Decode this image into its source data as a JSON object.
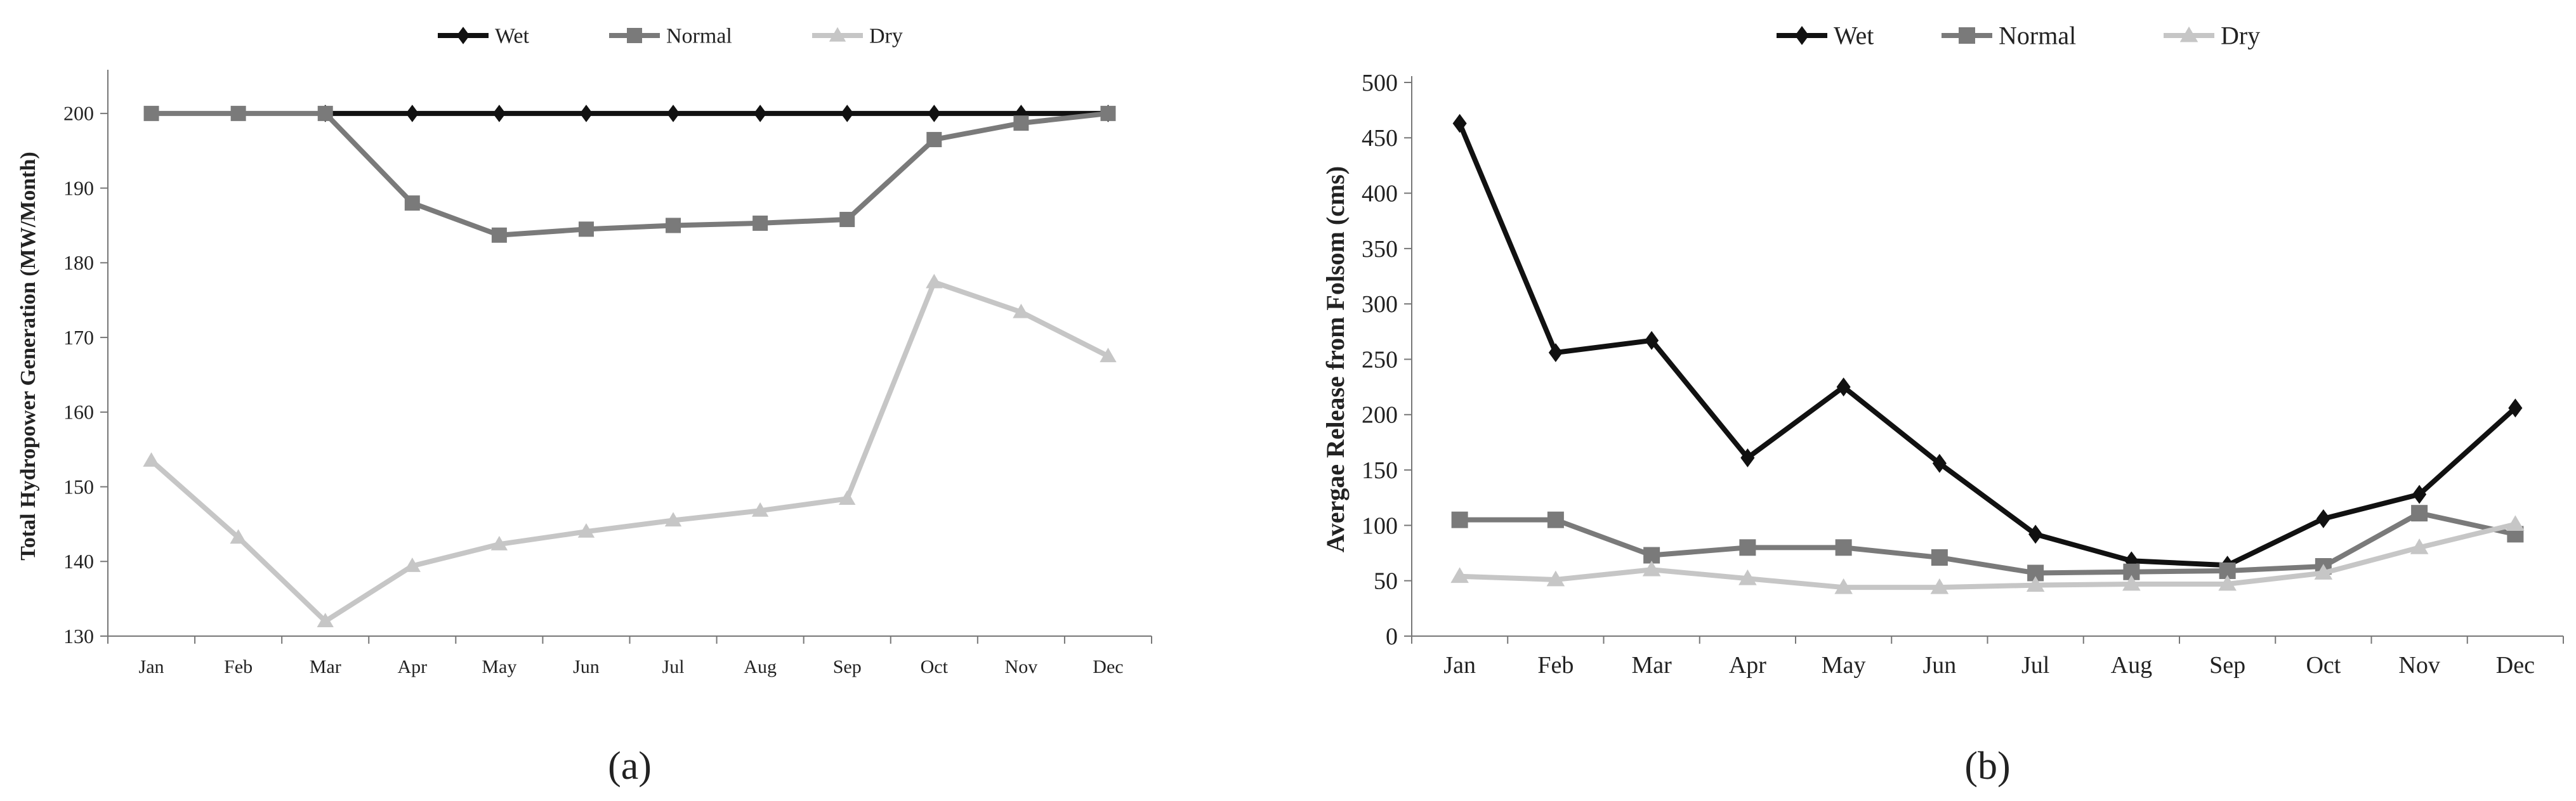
{
  "chart_data": [
    {
      "panel_label": "(a)",
      "type": "line",
      "title": "",
      "xlabel": "",
      "ylabel": "Total Hydropower Generation (MW/Month)",
      "categories": [
        "Jan",
        "Feb",
        "Mar",
        "Apr",
        "May",
        "Jun",
        "Jul",
        "Aug",
        "Sep",
        "Oct",
        "Nov",
        "Dec"
      ],
      "ylim": [
        130,
        205
      ],
      "yticks": [
        130,
        140,
        150,
        160,
        170,
        180,
        190,
        200
      ],
      "grid": false,
      "legend": "top-center",
      "series": [
        {
          "name": "Wet",
          "color": "#111111",
          "marker": "diamond",
          "values": [
            null,
            null,
            200,
            200,
            200,
            200,
            200,
            200,
            200,
            200,
            200,
            200
          ]
        },
        {
          "name": "Normal",
          "color": "#7a7a7a",
          "marker": "square",
          "values": [
            200,
            200,
            200,
            188,
            183.7,
            184.5,
            185,
            185.3,
            185.8,
            196.5,
            198.7,
            200
          ]
        },
        {
          "name": "Dry",
          "color": "#c6c6c6",
          "marker": "triangle",
          "values": [
            153.5,
            143.2,
            132,
            139.4,
            142.3,
            144,
            145.5,
            146.8,
            148.4,
            177.4,
            173.4,
            167.5
          ]
        }
      ]
    },
    {
      "panel_label": "(b)",
      "type": "line",
      "title": "",
      "xlabel": "",
      "ylabel": "Avergae Release from Folsom (cms)",
      "categories": [
        "Jan",
        "Feb",
        "Mar",
        "Apr",
        "May",
        "Jun",
        "Jul",
        "Aug",
        "Sep",
        "Oct",
        "Nov",
        "Dec"
      ],
      "ylim": [
        0,
        500
      ],
      "yticks": [
        0,
        50,
        100,
        150,
        200,
        250,
        300,
        350,
        400,
        450,
        500
      ],
      "grid": false,
      "legend": "top-center",
      "series": [
        {
          "name": "Wet",
          "color": "#111111",
          "marker": "diamond",
          "values": [
            463,
            256,
            267,
            161,
            225,
            156,
            92,
            68,
            64,
            106,
            128,
            206
          ]
        },
        {
          "name": "Normal",
          "color": "#7a7a7a",
          "marker": "square",
          "values": [
            105,
            105,
            73,
            80,
            80,
            71,
            57,
            58,
            59,
            63,
            111,
            92
          ]
        },
        {
          "name": "Dry",
          "color": "#c6c6c6",
          "marker": "triangle",
          "values": [
            54,
            51,
            60,
            52,
            44,
            44,
            46,
            47,
            47,
            57,
            80,
            101
          ]
        }
      ]
    }
  ]
}
